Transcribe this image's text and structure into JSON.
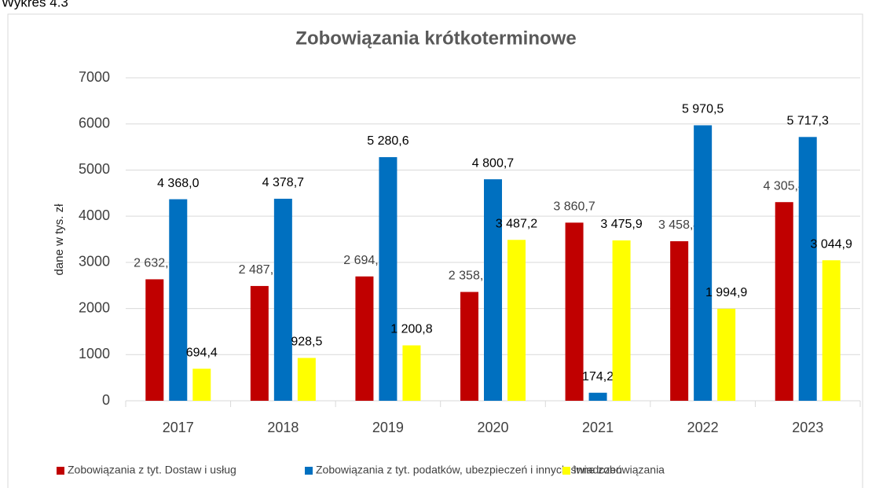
{
  "caption": "Wykres 4.3",
  "chart_data": {
    "type": "bar",
    "title": "Zobowiązania krótkoterminowe",
    "y_label": "dane w tys. zł",
    "categories": [
      "2017",
      "2018",
      "2019",
      "2020",
      "2021",
      "2022",
      "2023"
    ],
    "series": [
      {
        "name": "Zobowiązania z tyt. Dostaw i usług",
        "color": "#c00000",
        "values": [
          2632.8,
          2487.8,
          2694.9,
          2358.5,
          3860.7,
          3458.4,
          4305.4
        ],
        "value_labels": [
          "2 632,8",
          "2 487,8",
          "2 694,9",
          "2 358,5",
          "3 860,7",
          "3 458,4",
          "4 305,4"
        ]
      },
      {
        "name": "Zobowiązania z tyt. podatków, ubezpieczeń i innych świadczeń",
        "color": "#0070c0",
        "values": [
          4368.0,
          4378.7,
          5280.6,
          4800.7,
          174.2,
          5970.5,
          5717.3
        ],
        "value_labels": [
          "4 368,0",
          "4 378,7",
          "5 280,6",
          "4 800,7",
          "174,2",
          "5 970,5",
          "5 717,3"
        ]
      },
      {
        "name": "Inne zobowiązania",
        "color": "#ffff00",
        "values": [
          694.4,
          928.5,
          1200.8,
          3487.2,
          3475.9,
          1994.9,
          3044.9
        ],
        "value_labels": [
          "694,4",
          "928,5",
          "1 200,8",
          "3 487,2",
          "3 475,9",
          "1 994,9",
          "3 044,9"
        ]
      }
    ],
    "ylim": [
      0,
      7000
    ],
    "yticks": [
      0,
      1000,
      2000,
      3000,
      4000,
      5000,
      6000,
      7000
    ],
    "grid": true,
    "legend": "bottom"
  }
}
